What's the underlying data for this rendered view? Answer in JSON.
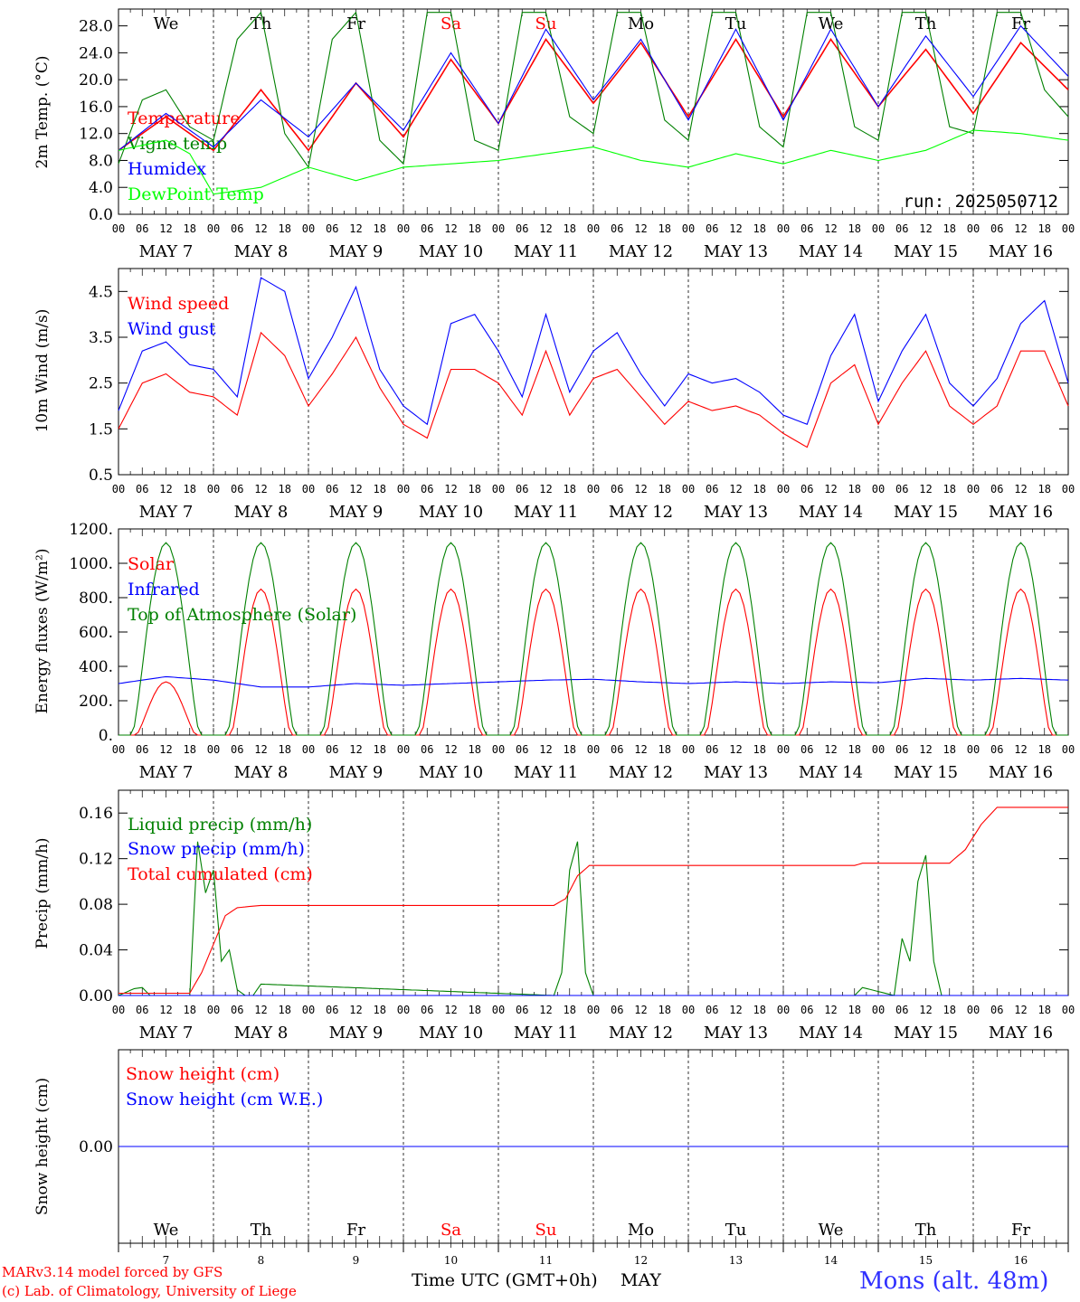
{
  "chart_data": [
    {
      "type": "line",
      "ylabel": "2m Temp. (°C)",
      "yticks": [
        "0.0",
        "4.0",
        "8.0",
        "12.0",
        "16.0",
        "20.0",
        "24.0",
        "28.0"
      ],
      "ylim": [
        0,
        30.5
      ],
      "run_label": "run: 2025050712",
      "series": [
        {
          "name": "Temperature",
          "color": "#ff0000",
          "x": [
            0,
            12,
            24,
            36,
            48,
            60,
            72,
            84,
            96,
            108,
            120,
            132,
            144,
            156,
            168,
            180,
            192,
            204,
            216,
            228,
            240
          ],
          "values": [
            9.5,
            14.5,
            9.5,
            18.5,
            9.5,
            19.5,
            11.5,
            23.0,
            13.5,
            26.0,
            16.5,
            25.5,
            14.5,
            26.0,
            14.5,
            26.0,
            16.0,
            24.5,
            15.0,
            25.5,
            18.5
          ]
        },
        {
          "name": "Vigne temp",
          "color": "#008000",
          "x": [
            0,
            6,
            12,
            18,
            24,
            30,
            36,
            42,
            48,
            54,
            60,
            66,
            72,
            78,
            84,
            90,
            96,
            102,
            108,
            114,
            120,
            126,
            132,
            138,
            144,
            150,
            156,
            162,
            168,
            174,
            180,
            186,
            192,
            198,
            204,
            210,
            216,
            222,
            228,
            234,
            240
          ],
          "values": [
            7.5,
            17.0,
            18.5,
            13.0,
            11.0,
            26.0,
            30.0,
            12.0,
            7.0,
            26.0,
            30.0,
            11.0,
            7.5,
            30.0,
            30.0,
            11.0,
            9.5,
            30.0,
            30.0,
            14.5,
            12.0,
            30.0,
            30.0,
            14.0,
            11.0,
            30.0,
            30.0,
            13.0,
            10.0,
            30.0,
            30.0,
            13.0,
            11.0,
            30.0,
            30.0,
            13.0,
            12.0,
            30.0,
            30.0,
            18.5,
            14.5
          ]
        },
        {
          "name": "Humidex",
          "color": "#0000ff",
          "x": [
            0,
            12,
            24,
            36,
            48,
            60,
            72,
            84,
            96,
            108,
            120,
            132,
            144,
            156,
            168,
            180,
            192,
            204,
            216,
            228,
            240
          ],
          "values": [
            9.5,
            15.0,
            10.0,
            17.0,
            11.5,
            19.5,
            12.5,
            24.0,
            13.5,
            27.5,
            17.0,
            26.0,
            14.0,
            27.5,
            14.0,
            27.5,
            16.0,
            26.5,
            17.5,
            28.0,
            20.5
          ]
        },
        {
          "name": "DewPoint Temp",
          "color": "#00ff00",
          "x": [
            0,
            12,
            18,
            24,
            36,
            48,
            60,
            72,
            84,
            96,
            108,
            120,
            132,
            144,
            156,
            168,
            180,
            192,
            204,
            216,
            228,
            240
          ],
          "values": [
            9.5,
            11.0,
            9.0,
            3.0,
            4.0,
            7.0,
            5.0,
            7.0,
            7.5,
            8.0,
            9.0,
            10.0,
            8.0,
            7.0,
            9.0,
            7.5,
            9.5,
            8.0,
            9.5,
            12.5,
            12.0,
            11.0
          ]
        }
      ]
    },
    {
      "type": "line",
      "ylabel": "10m Wind (m/s)",
      "yticks": [
        "0.5",
        "1.5",
        "2.5",
        "3.5",
        "4.5"
      ],
      "ylim": [
        0.5,
        5.0
      ],
      "series": [
        {
          "name": "Wind speed",
          "color": "#ff0000",
          "x": [
            0,
            6,
            12,
            18,
            24,
            30,
            36,
            42,
            48,
            54,
            60,
            66,
            72,
            78,
            84,
            90,
            96,
            102,
            108,
            114,
            120,
            126,
            132,
            138,
            144,
            150,
            156,
            162,
            168,
            174,
            180,
            186,
            192,
            198,
            204,
            210,
            216,
            222,
            228,
            234,
            240
          ],
          "values": [
            1.5,
            2.5,
            2.7,
            2.3,
            2.2,
            1.8,
            3.6,
            3.1,
            2.0,
            2.7,
            3.5,
            2.4,
            1.6,
            1.3,
            2.8,
            2.8,
            2.5,
            1.8,
            3.2,
            1.8,
            2.6,
            2.8,
            2.2,
            1.6,
            2.1,
            1.9,
            2.0,
            1.8,
            1.4,
            1.1,
            2.5,
            2.9,
            1.6,
            2.5,
            3.2,
            2.0,
            1.6,
            2.0,
            3.2,
            3.2,
            2.0
          ]
        },
        {
          "name": "Wind gust",
          "color": "#0000ff",
          "x": [
            0,
            6,
            12,
            18,
            24,
            30,
            36,
            42,
            48,
            54,
            60,
            66,
            72,
            78,
            84,
            90,
            96,
            102,
            108,
            114,
            120,
            126,
            132,
            138,
            144,
            150,
            156,
            162,
            168,
            174,
            180,
            186,
            192,
            198,
            204,
            210,
            216,
            222,
            228,
            234,
            240
          ],
          "values": [
            1.9,
            3.2,
            3.4,
            2.9,
            2.8,
            2.2,
            4.8,
            4.5,
            2.6,
            3.5,
            4.6,
            2.8,
            2.0,
            1.6,
            3.8,
            4.0,
            3.2,
            2.2,
            4.0,
            2.3,
            3.2,
            3.6,
            2.7,
            2.0,
            2.7,
            2.5,
            2.6,
            2.3,
            1.8,
            1.6,
            3.1,
            4.0,
            2.1,
            3.2,
            4.0,
            2.5,
            2.0,
            2.6,
            3.8,
            4.3,
            2.5
          ]
        }
      ]
    },
    {
      "type": "line",
      "ylabel": "Energy fluxes (W/m²)",
      "yticks": [
        "0.",
        "200.",
        "400.",
        "600.",
        "800.",
        "1000.",
        "1200."
      ],
      "ylim": [
        0,
        1200
      ],
      "series": [
        {
          "name": "Solar",
          "color": "#ff0000",
          "peaks_by_day": [
            310,
            850,
            850,
            850,
            850,
            850,
            850,
            850,
            850,
            850
          ]
        },
        {
          "name": "Infrared",
          "color": "#0000ff",
          "x": [
            0,
            12,
            24,
            36,
            48,
            60,
            72,
            84,
            96,
            108,
            120,
            132,
            144,
            156,
            168,
            180,
            192,
            204,
            216,
            228,
            240
          ],
          "values": [
            300,
            340,
            320,
            280,
            280,
            300,
            290,
            300,
            310,
            320,
            325,
            310,
            300,
            310,
            300,
            310,
            305,
            330,
            320,
            330,
            320
          ]
        },
        {
          "name": "Top of Atmosphere (Solar)",
          "color": "#008000",
          "peak": 1120
        }
      ]
    },
    {
      "type": "line",
      "ylabel": "Precip (mm/h)",
      "yticks": [
        "0.00",
        "0.04",
        "0.08",
        "0.12",
        "0.16"
      ],
      "ylim": [
        0,
        0.18
      ],
      "series": [
        {
          "name": "Liquid precip (mm/h)",
          "color": "#008000",
          "x": [
            0,
            4,
            6,
            8,
            18,
            20,
            22,
            24,
            26,
            28,
            30,
            32,
            34,
            36,
            110,
            112,
            114,
            116,
            118,
            120,
            186,
            188,
            196,
            198,
            200,
            202,
            204,
            206,
            208,
            210
          ],
          "values": [
            0,
            0.006,
            0.007,
            0,
            0,
            0.135,
            0.09,
            0.11,
            0.03,
            0.04,
            0.005,
            0,
            0,
            0.01,
            0,
            0.02,
            0.11,
            0.135,
            0.02,
            0,
            0,
            0.007,
            0,
            0.05,
            0.03,
            0.1,
            0.123,
            0.03,
            0,
            0
          ]
        },
        {
          "name": "Snow precip (mm/h)",
          "color": "#0000ff",
          "x": [
            0,
            240
          ],
          "values": [
            0,
            0
          ]
        },
        {
          "name": "Total cumulated (cm)",
          "color": "#ff0000",
          "x": [
            0,
            18,
            21,
            24,
            27,
            30,
            36,
            48,
            110,
            113,
            116,
            119,
            120,
            186,
            188,
            210,
            214,
            218,
            222,
            240
          ],
          "values": [
            0.002,
            0.002,
            0.02,
            0.045,
            0.07,
            0.077,
            0.079,
            0.079,
            0.079,
            0.085,
            0.105,
            0.114,
            0.114,
            0.114,
            0.116,
            0.116,
            0.128,
            0.15,
            0.165,
            0.165
          ]
        }
      ]
    },
    {
      "type": "line",
      "ylabel": "Snow height (cm)",
      "yticks": [
        "0.00"
      ],
      "series": [
        {
          "name": "Snow height (cm)",
          "color": "#ff0000",
          "x": [
            0,
            240
          ],
          "values": [
            0,
            0
          ]
        },
        {
          "name": "Snow height (cm W.E.)",
          "color": "#0000ff",
          "x": [
            0,
            240
          ],
          "values": [
            0,
            0
          ]
        }
      ]
    }
  ],
  "x_axis": {
    "hour_labels": [
      "00",
      "06",
      "12",
      "18"
    ],
    "day_labels": [
      "MAY  7",
      "MAY  8",
      "MAY  9",
      "MAY 10",
      "MAY 11",
      "MAY 12",
      "MAY 13",
      "MAY 14",
      "MAY 15",
      "MAY 16"
    ],
    "weekdays": [
      "We",
      "Th",
      "Fr",
      "Sa",
      "Su",
      "Mo",
      "Tu",
      "We",
      "Th",
      "Fr"
    ],
    "weekend_color": "#ff0000",
    "day_numbers": [
      "7",
      "8",
      "9",
      "10",
      "11",
      "12",
      "13",
      "14",
      "15",
      "16"
    ],
    "title": "Time UTC (GMT+0h)",
    "month": "MAY"
  },
  "footer": {
    "credit_line1": "MARv3.14 model forced by GFS",
    "credit_line2": "(c) Lab. of Climatology, University of Liege",
    "location": "Mons (alt. 48m)"
  }
}
